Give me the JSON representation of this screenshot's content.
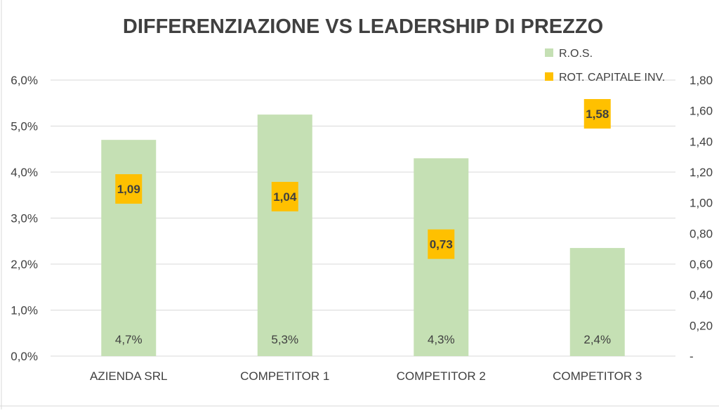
{
  "chart_data": {
    "type": "bar",
    "title": "DIFFERENZIAZIONE VS LEADERSHIP DI PREZZO",
    "categories": [
      "AZIENDA SRL",
      "COMPETITOR 1",
      "COMPETITOR 2",
      "COMPETITOR 3"
    ],
    "series": [
      {
        "name": "R.O.S.",
        "type": "bar",
        "axis": "left",
        "color": "#c5e0b4",
        "values": [
          0.047,
          0.0525,
          0.043,
          0.0235
        ],
        "labels": [
          "4,7%",
          "5,3%",
          "4,3%",
          "2,4%"
        ]
      },
      {
        "name": "ROT. CAPITALE INV.",
        "type": "marker",
        "axis": "right",
        "color": "#ffc000",
        "values": [
          1.09,
          1.04,
          0.73,
          1.58
        ],
        "labels": [
          "1,09",
          "1,04",
          "0,73",
          "1,58"
        ]
      }
    ],
    "y_left": {
      "min": 0,
      "max": 0.06,
      "ticks": [
        0,
        0.01,
        0.02,
        0.03,
        0.04,
        0.05,
        0.06
      ],
      "tick_labels": [
        "0,0%",
        "1,0%",
        "2,0%",
        "3,0%",
        "4,0%",
        "5,0%",
        "6,0%"
      ]
    },
    "y_right": {
      "min": 0,
      "max": 1.8,
      "ticks": [
        0,
        0.2,
        0.4,
        0.6,
        0.8,
        1.0,
        1.2,
        1.4,
        1.6,
        1.8
      ],
      "tick_labels": [
        "-",
        "0,20",
        "0,40",
        "0,60",
        "0,80",
        "1,00",
        "1,20",
        "1,40",
        "1,60",
        "1,80"
      ]
    },
    "gridlines": true,
    "legend_position": "top-right"
  }
}
